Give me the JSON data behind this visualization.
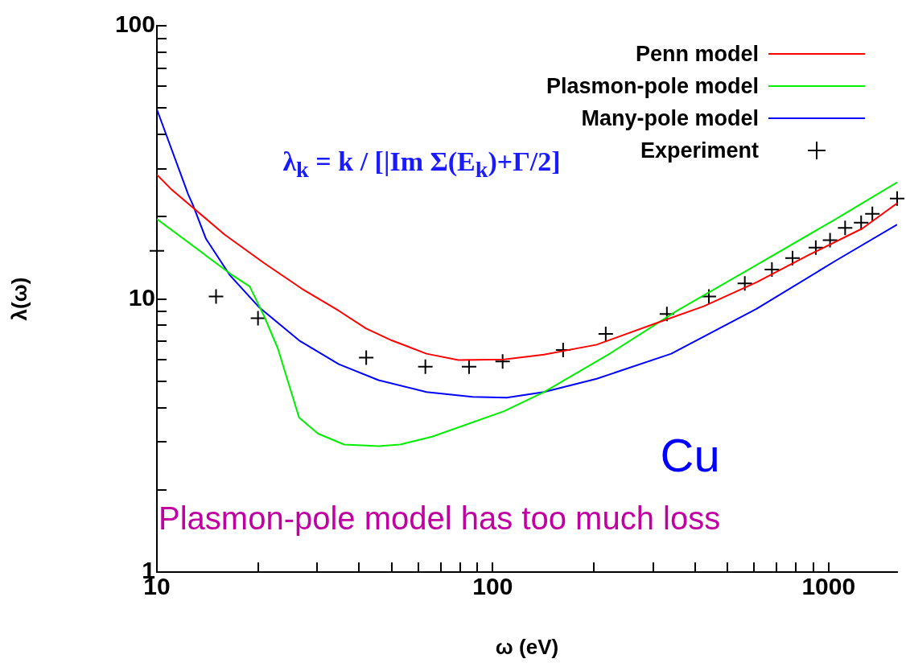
{
  "chart_data": {
    "type": "line",
    "xlabel": "ω (eV)",
    "ylabel": "λ(ω)",
    "log": "xy",
    "grid": false,
    "legend": "top right",
    "xlim": [
      10,
      1600
    ],
    "ylim": [
      1,
      100
    ],
    "xticks": [
      10,
      {
        "value": 20,
        "label": null
      },
      {
        "value": 30,
        "label": null
      },
      {
        "value": 40,
        "label": null
      },
      {
        "value": 50,
        "label": null
      },
      {
        "value": 60,
        "label": null
      },
      {
        "value": 70,
        "label": null
      },
      {
        "value": 80,
        "label": null
      },
      {
        "value": 90,
        "label": null
      },
      100,
      {
        "value": 200,
        "label": null
      },
      {
        "value": 300,
        "label": null
      },
      {
        "value": 400,
        "label": null
      },
      {
        "value": 500,
        "label": null
      },
      {
        "value": 600,
        "label": null
      },
      {
        "value": 700,
        "label": null
      },
      {
        "value": 800,
        "label": null
      },
      {
        "value": 900,
        "label": null
      },
      1000
    ],
    "yticks": [
      1,
      {
        "value": 2,
        "label": null
      },
      {
        "value": 3,
        "label": null
      },
      {
        "value": 4,
        "label": null
      },
      {
        "value": 5,
        "label": null
      },
      {
        "value": 6,
        "label": null
      },
      {
        "value": 7,
        "label": null
      },
      {
        "value": 8,
        "label": null
      },
      {
        "value": 9,
        "label": null
      },
      10,
      {
        "value": 20,
        "label": null
      },
      {
        "value": 30,
        "label": null
      },
      {
        "value": 40,
        "label": null
      },
      {
        "value": 50,
        "label": null
      },
      {
        "value": 60,
        "label": null
      },
      {
        "value": 70,
        "label": null
      },
      {
        "value": 80,
        "label": null
      },
      {
        "value": 90,
        "label": null
      },
      100
    ],
    "series": [
      {
        "name": "Penn model",
        "color": "#ff0000",
        "x": [
          10,
          11,
          15.9,
          20.9,
          27,
          34.8,
          41.9,
          50,
          63.5,
          79,
          108,
          142,
          204,
          311,
          425,
          610,
          875,
          1260,
          1600
        ],
        "values": [
          28.5,
          25.3,
          17.2,
          13.5,
          10.9,
          9.05,
          7.8,
          7.05,
          6.3,
          5.97,
          6.0,
          6.25,
          6.8,
          8.2,
          9.4,
          11.5,
          14.5,
          18.1,
          22.4
        ]
      },
      {
        "name": "Plasmon-pole model",
        "color": "#00ee00",
        "x": [
          10,
          16.8,
          18.9,
          20.9,
          22.9,
          26.5,
          30.2,
          36.1,
          45.7,
          53,
          66,
          87,
          108,
          142,
          223,
          354,
          610,
          1050,
          1600
        ],
        "values": [
          19.6,
          12.2,
          11.1,
          8.6,
          6.6,
          3.68,
          3.21,
          2.93,
          2.89,
          2.93,
          3.13,
          3.53,
          3.88,
          4.56,
          6.3,
          9.05,
          13.3,
          19.6,
          26.7
        ]
      },
      {
        "name": "Many-pole model",
        "color": "#0000ff",
        "x": [
          10,
          12.4,
          12.8,
          14,
          16.5,
          20.1,
          26.5,
          34.8,
          45.7,
          63.5,
          87,
          110,
          142,
          204,
          340,
          610,
          1050,
          1600
        ],
        "values": [
          49.4,
          24.1,
          22.1,
          16.6,
          12.2,
          9.35,
          7.05,
          5.77,
          5.04,
          4.56,
          4.38,
          4.35,
          4.56,
          5.1,
          6.3,
          9.2,
          13.8,
          18.7
        ]
      },
      {
        "name": "Experiment",
        "type": "scatter",
        "marker": "cross",
        "color": "#000000",
        "x": [
          10,
          15,
          20,
          42,
          63,
          85,
          107,
          162,
          217,
          330,
          440,
          563,
          678,
          781,
          916,
          1010,
          1120,
          1250,
          1350,
          1600
        ],
        "values": [
          15,
          10.2,
          8.5,
          6.1,
          5.65,
          5.65,
          5.9,
          6.5,
          7.45,
          8.8,
          10.2,
          11.4,
          12.8,
          14.1,
          15.4,
          16.4,
          18.2,
          19,
          20.5,
          23.3
        ]
      }
    ],
    "annotations": [
      "λ$_{k}$ = k / [|Im Σ(E$_{k}$)+Γ/2]",
      "Cu",
      "Plasmon-pole model has too much loss"
    ]
  }
}
